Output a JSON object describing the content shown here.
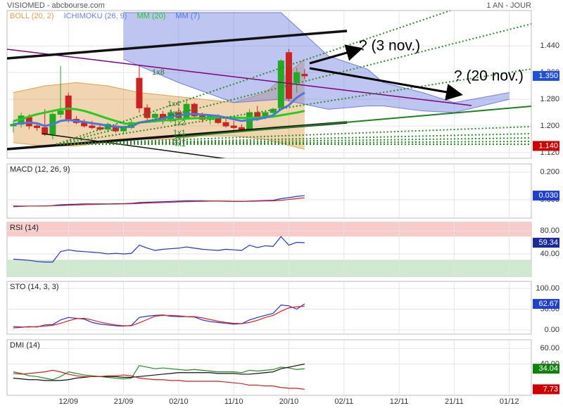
{
  "chart_data": [
    {
      "type": "candlestick",
      "title": "VISIOMED - abcbourse.com",
      "subtitle": "1 AN - JOUR",
      "ylim": [
        1.103,
        1.546
      ],
      "yticks": [
        {
          "value": 1.44,
          "label": "1.440"
        },
        {
          "value": 1.36,
          "label": "1.360"
        },
        {
          "value": 1.28,
          "label": "1.280"
        },
        {
          "value": 1.2,
          "label": "1.200"
        },
        {
          "value": 1.12,
          "label": "1.120"
        }
      ],
      "x": [
        0,
        1,
        2,
        3,
        4,
        5,
        6,
        7,
        8,
        9,
        10,
        11,
        12,
        13,
        14,
        15,
        16,
        17,
        18,
        19,
        20,
        21,
        22,
        23,
        24,
        25,
        26,
        27,
        28,
        29,
        30,
        31,
        32,
        33,
        34,
        35,
        36,
        37
      ],
      "open": [
        1.2,
        1.205,
        1.225,
        1.2,
        1.195,
        1.175,
        1.235,
        1.29,
        1.22,
        1.21,
        1.2,
        1.195,
        1.19,
        1.2,
        1.185,
        1.195,
        1.343,
        1.254,
        1.225,
        1.235,
        1.215,
        1.24,
        1.225,
        1.265,
        1.23,
        1.22,
        1.23,
        1.21,
        1.2,
        1.195,
        1.19,
        1.24,
        1.225,
        1.24,
        1.255,
        1.42,
        1.33,
        1.355
      ],
      "high": [
        1.215,
        1.24,
        1.235,
        1.21,
        1.25,
        1.24,
        1.38,
        1.3,
        1.23,
        1.22,
        1.215,
        1.205,
        1.21,
        1.205,
        1.2,
        1.22,
        1.384,
        1.265,
        1.24,
        1.245,
        1.25,
        1.255,
        1.28,
        1.27,
        1.24,
        1.235,
        1.235,
        1.225,
        1.215,
        1.205,
        1.25,
        1.26,
        1.245,
        1.255,
        1.4,
        1.43,
        1.375,
        1.37
      ],
      "low": [
        1.18,
        1.195,
        1.19,
        1.185,
        1.17,
        1.16,
        1.225,
        1.21,
        1.205,
        1.195,
        1.19,
        1.185,
        1.18,
        1.18,
        1.175,
        1.19,
        1.24,
        1.215,
        1.21,
        1.205,
        1.21,
        1.22,
        1.22,
        1.225,
        1.21,
        1.205,
        1.205,
        1.195,
        1.19,
        1.185,
        1.185,
        1.215,
        1.22,
        1.23,
        1.25,
        1.275,
        1.3,
        1.34
      ],
      "close": [
        1.205,
        1.23,
        1.2,
        1.195,
        1.175,
        1.235,
        1.245,
        1.22,
        1.21,
        1.2,
        1.195,
        1.19,
        1.205,
        1.185,
        1.195,
        1.21,
        1.254,
        1.225,
        1.235,
        1.215,
        1.24,
        1.225,
        1.265,
        1.23,
        1.22,
        1.23,
        1.21,
        1.2,
        1.195,
        1.19,
        1.24,
        1.225,
        1.24,
        1.25,
        1.395,
        1.282,
        1.36,
        1.35
      ],
      "up_color": "#22aa22",
      "down_color": "#cc2222",
      "series": [
        {
          "name": "BOLL (20, 2)",
          "color": "#e0a050",
          "kind": "band",
          "x": [
            0,
            4,
            8,
            12,
            16,
            20,
            24,
            28,
            32,
            37
          ],
          "upper": [
            1.3,
            1.32,
            1.33,
            1.32,
            1.3,
            1.29,
            1.28,
            1.27,
            1.3,
            1.4
          ],
          "lower": [
            1.15,
            1.14,
            1.14,
            1.15,
            1.16,
            1.16,
            1.17,
            1.17,
            1.16,
            1.13
          ]
        },
        {
          "name": "ICHIMOKU (26, 9)",
          "color": "#6f7fe0",
          "kind": "band",
          "x": [
            14,
            21,
            28,
            34,
            40,
            45,
            47,
            52,
            56,
            63
          ],
          "upper": [
            1.54,
            1.54,
            1.54,
            1.54,
            1.41,
            1.37,
            1.33,
            1.3,
            1.27,
            1.3
          ],
          "lower": [
            1.4,
            1.33,
            1.27,
            1.28,
            1.25,
            1.26,
            1.26,
            1.245,
            1.24,
            1.28
          ]
        },
        {
          "name": "MM (20)",
          "color": "#22cc22",
          "values": [
            1.215,
            1.22,
            1.228,
            1.235,
            1.24,
            1.245,
            1.25,
            1.252,
            1.25,
            1.245,
            1.238,
            1.23,
            1.222,
            1.215,
            1.208,
            1.205,
            1.21,
            1.212,
            1.214,
            1.216,
            1.218,
            1.22,
            1.222,
            1.223,
            1.224,
            1.224,
            1.225,
            1.225,
            1.225,
            1.224,
            1.224,
            1.225,
            1.226,
            1.228,
            1.232,
            1.236,
            1.24,
            1.245
          ]
        },
        {
          "name": "MM (7)",
          "color": "#4a78e0",
          "values": [
            1.205,
            1.208,
            1.21,
            1.208,
            1.2,
            1.205,
            1.215,
            1.218,
            1.215,
            1.212,
            1.208,
            1.205,
            1.2,
            1.198,
            1.196,
            1.198,
            1.21,
            1.214,
            1.218,
            1.222,
            1.228,
            1.232,
            1.235,
            1.236,
            1.234,
            1.232,
            1.23,
            1.225,
            1.22,
            1.215,
            1.218,
            1.22,
            1.225,
            1.232,
            1.25,
            1.262,
            1.285,
            1.3
          ]
        }
      ],
      "tags": [
        {
          "value": 1.35,
          "label": "1.350",
          "color": "#1f4fd6"
        },
        {
          "value": 1.14,
          "label": "1.140",
          "color": "#cc0000"
        }
      ],
      "annotations": [
        "1x8",
        "1x4",
        "1x3",
        "1x2",
        "1x1",
        "2x1",
        "4x1",
        "? (3 nov.)",
        "? (20 nov.)"
      ]
    },
    {
      "type": "line",
      "title": "MACD (12, 26, 9)",
      "ylim": [
        -0.133,
        0.26
      ],
      "yticks": [
        {
          "value": 0.2,
          "label": "0.200"
        },
        {
          "value": 0,
          "label": "0.000"
        }
      ],
      "series": [
        {
          "color": "#2233cc",
          "values": [
            -0.05,
            -0.048,
            -0.046,
            -0.046,
            -0.045,
            -0.042,
            -0.036,
            -0.034,
            -0.032,
            -0.03,
            -0.03,
            -0.03,
            -0.03,
            -0.029,
            -0.028,
            -0.026,
            -0.02,
            -0.018,
            -0.016,
            -0.014,
            -0.012,
            -0.01,
            -0.008,
            -0.008,
            -0.008,
            -0.009,
            -0.01,
            -0.011,
            -0.012,
            -0.012,
            -0.01,
            -0.008,
            -0.006,
            -0.004,
            0.008,
            0.015,
            0.024,
            0.03
          ]
        },
        {
          "color": "#cc2222",
          "values": [
            -0.045,
            -0.046,
            -0.046,
            -0.046,
            -0.045,
            -0.044,
            -0.042,
            -0.04,
            -0.038,
            -0.036,
            -0.034,
            -0.033,
            -0.032,
            -0.031,
            -0.03,
            -0.029,
            -0.027,
            -0.024,
            -0.022,
            -0.02,
            -0.018,
            -0.016,
            -0.014,
            -0.012,
            -0.011,
            -0.01,
            -0.01,
            -0.01,
            -0.011,
            -0.011,
            -0.011,
            -0.01,
            -0.009,
            -0.008,
            -0.004,
            0.002,
            0.008,
            0.014
          ]
        }
      ],
      "tags": [
        {
          "value": 0.03,
          "label": "0.030",
          "color": "#1f3fd0"
        }
      ]
    },
    {
      "type": "line",
      "title": "RSI (14)",
      "ylim": [
        1.2,
        94.5
      ],
      "yticks": [
        {
          "value": 80,
          "label": "80.00"
        },
        {
          "value": 40,
          "label": "40.00"
        }
      ],
      "bands": {
        "upper": 70,
        "lower": 30,
        "upper_color": "#f8caca",
        "lower_color": "#cfe8cf"
      },
      "series": [
        {
          "color": "#2233cc",
          "values": [
            31,
            30,
            29,
            27,
            26,
            26,
            44,
            47,
            45,
            44,
            43,
            42,
            40,
            41,
            40,
            41,
            55,
            50,
            46,
            48,
            49,
            50,
            52,
            50,
            48,
            47,
            46,
            48,
            47,
            46,
            55,
            51,
            54,
            53,
            70,
            55,
            60,
            59.34
          ]
        }
      ],
      "tags": [
        {
          "value": 59.34,
          "label": "59.34",
          "color": "#1a2a9a"
        }
      ]
    },
    {
      "type": "line",
      "title": "STO (14, 3, 3)",
      "ylim": [
        -10.2,
        117
      ],
      "yticks": [
        {
          "value": 100,
          "label": "100.00"
        },
        {
          "value": 50,
          "label": "50.00"
        },
        {
          "value": 0,
          "label": "0.00"
        }
      ],
      "series": [
        {
          "color": "#2233cc",
          "values": [
            5,
            6,
            8,
            7,
            12,
            13,
            24,
            30,
            28,
            26,
            18,
            14,
            12,
            10,
            9,
            11,
            30,
            33,
            35,
            36,
            33,
            32,
            32,
            31,
            24,
            20,
            18,
            16,
            14,
            15,
            24,
            30,
            35,
            40,
            60,
            58,
            50,
            62.67
          ]
        },
        {
          "color": "#dd2222",
          "values": [
            8,
            7,
            7,
            8,
            9,
            11,
            16,
            22,
            27,
            28,
            24,
            19,
            15,
            12,
            10,
            10,
            17,
            25,
            33,
            35,
            35,
            34,
            32,
            32,
            29,
            25,
            21,
            18,
            16,
            15,
            18,
            23,
            30,
            35,
            45,
            53,
            56,
            57
          ]
        }
      ],
      "tags": [
        {
          "value": 62.67,
          "label": "62.67",
          "color": "#1f3fd0"
        }
      ]
    },
    {
      "type": "line",
      "title": "DMI (14)",
      "ylim": [
        0,
        71
      ],
      "yticks": [
        {
          "value": 60,
          "label": "60.00"
        },
        {
          "value": 40,
          "label": "40.00"
        }
      ],
      "xlim": [
        -0.8,
        65.8
      ],
      "xticks": [
        {
          "value": 7,
          "label": "12/09"
        },
        {
          "value": 14,
          "label": "21/09"
        },
        {
          "value": 21,
          "label": "02/10"
        },
        {
          "value": 28,
          "label": "11/10"
        },
        {
          "value": 35,
          "label": "20/10"
        },
        {
          "value": 42,
          "label": "02/11"
        },
        {
          "value": 49,
          "label": "12/11"
        },
        {
          "value": 56,
          "label": "21/11"
        },
        {
          "value": 63,
          "label": "01/12"
        }
      ],
      "series": [
        {
          "color": "#228822",
          "values": [
            30,
            28,
            25,
            24,
            22,
            20,
            24,
            30,
            28,
            26,
            25,
            24,
            23,
            22,
            21,
            22,
            38,
            36,
            34,
            35,
            34,
            33,
            32,
            33,
            32,
            31,
            30,
            30,
            30,
            29,
            32,
            31,
            32,
            33,
            36,
            35,
            33,
            34.04
          ]
        },
        {
          "color": "#111111",
          "values": [
            22,
            21,
            20,
            20,
            19,
            19,
            19,
            20,
            22,
            23,
            24,
            24,
            24,
            24,
            23,
            23,
            24,
            25,
            26,
            27,
            28,
            29,
            29,
            29,
            29,
            29,
            28,
            28,
            28,
            27,
            27,
            28,
            29,
            30,
            34,
            36,
            38,
            40
          ]
        },
        {
          "color": "#cc2222",
          "values": [
            28,
            27,
            28,
            29,
            30,
            32,
            30,
            27,
            25,
            24,
            24,
            24,
            25,
            25,
            26,
            25,
            22,
            21,
            20,
            20,
            19,
            19,
            18,
            18,
            18,
            18,
            18,
            17,
            16,
            15,
            13,
            13,
            12,
            12,
            10,
            9,
            9,
            7.73
          ]
        }
      ],
      "tags": [
        {
          "value": 34.04,
          "label": "34.04",
          "color": "#108010"
        },
        {
          "value": 7.73,
          "label": "7.73",
          "color": "#cc0000"
        }
      ]
    }
  ]
}
